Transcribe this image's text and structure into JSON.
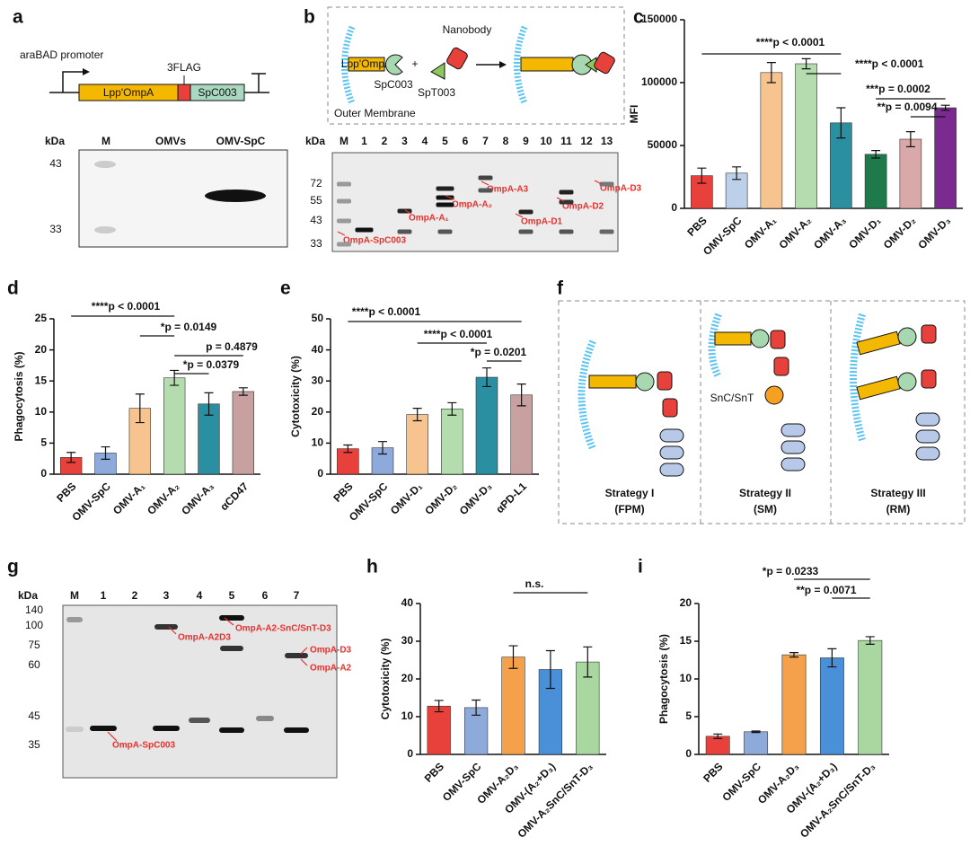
{
  "panel_labels": [
    "a",
    "b",
    "c",
    "d",
    "e",
    "f",
    "g",
    "h",
    "i"
  ],
  "panel_a": {
    "promoter": "araBAD promoter",
    "tag": "3FLAG",
    "genes": [
      "Lpp'OmpA",
      "SpC003"
    ],
    "gel": {
      "unit": "kDa",
      "lanes": [
        "M",
        "OMVs",
        "OMV-SpC"
      ],
      "markers": [
        "43",
        "33"
      ]
    }
  },
  "panel_b": {
    "fusion": "Lpp'OmpA",
    "spc": "SpC003",
    "nanobody": "Nanobody",
    "spt": "SpT003",
    "membrane": "Outer Membrane",
    "plus": "+",
    "gel": {
      "unit": "kDa",
      "lanes": [
        "M",
        "1",
        "2",
        "3",
        "4",
        "5",
        "6",
        "7",
        "8",
        "9",
        "10",
        "11",
        "12",
        "13"
      ],
      "markers": [
        "72",
        "55",
        "43",
        "33"
      ],
      "bands": [
        "OmpA-SpC003",
        "OmpA-A₁",
        "OmpA-A₂",
        "OmpA-A3",
        "OmpA-D1",
        "OmpA-D2",
        "OmpA-D3"
      ]
    }
  },
  "panel_f": {
    "linker": "SnC/SnT",
    "strategies": [
      {
        "name": "Strategy I",
        "abbr": "(FPM)"
      },
      {
        "name": "Strategy II",
        "abbr": "(SM)"
      },
      {
        "name": "Strategy III",
        "abbr": "(RM)"
      }
    ]
  },
  "panel_g": {
    "unit": "kDa",
    "lanes": [
      "M",
      "1",
      "2",
      "3",
      "4",
      "5",
      "6",
      "7"
    ],
    "markers": [
      "140",
      "100",
      "75",
      "60",
      "45",
      "35"
    ],
    "bands": [
      "OmpA-A2D3",
      "OmpA-A2-SnC/SnT-D3",
      "OmpA-D3",
      "OmpA-A2",
      "OmpA-SpC003"
    ]
  },
  "chart_data": [
    {
      "type": "bar",
      "ylabel": "MFI",
      "categories": [
        "PBS",
        "OMV-SpC",
        "OMV-A₁",
        "OMV-A₂",
        "OMV-A₃",
        "OMV-D₁",
        "OMV-D₂",
        "OMV-D₃"
      ],
      "values": [
        26000,
        28000,
        108000,
        115000,
        68000,
        43000,
        55000,
        80000
      ],
      "errors": [
        6000,
        5000,
        8000,
        4000,
        12000,
        3000,
        6000,
        2000
      ],
      "colors": [
        "#e8413c",
        "#bcd0ea",
        "#f7c48f",
        "#b5dcae",
        "#2a8fa0",
        "#1e7a4a",
        "#d9a8a8",
        "#7b2a8f"
      ],
      "ylim": [
        0,
        150000
      ],
      "yticks": [
        0,
        50000,
        100000,
        150000
      ],
      "annotations": [
        "****p < 0.0001",
        "****p < 0.0001",
        "***p = 0.0002",
        "**p = 0.0094"
      ]
    },
    {
      "type": "bar",
      "ylabel": "Phagocytosis (%)",
      "categories": [
        "PBS",
        "OMV-SpC",
        "OMV-A₁",
        "OMV-A₂",
        "OMV-A₃",
        "αCD47"
      ],
      "values": [
        2.7,
        3.4,
        10.6,
        15.5,
        11.3,
        13.3
      ],
      "errors": [
        0.8,
        1.0,
        2.3,
        1.2,
        1.8,
        0.6
      ],
      "colors": [
        "#e8413c",
        "#8eaadb",
        "#f7c48f",
        "#b5dcae",
        "#2a8fa0",
        "#c9a0a0"
      ],
      "ylim": [
        0,
        25
      ],
      "yticks": [
        0,
        5,
        10,
        15,
        20,
        25
      ],
      "annotations": [
        "****p < 0.0001",
        "*p = 0.0149",
        "p = 0.4879",
        "*p = 0.0379"
      ]
    },
    {
      "type": "bar",
      "ylabel": "Cytotoxicity (%)",
      "categories": [
        "PBS",
        "OMV-SpC",
        "OMV-D₁",
        "OMV-D₂",
        "OMV-D₃",
        "αPD-L1"
      ],
      "values": [
        8.2,
        8.5,
        19.2,
        21,
        31.2,
        25.5
      ],
      "errors": [
        1.2,
        2,
        2,
        2,
        3,
        3.5
      ],
      "colors": [
        "#e8413c",
        "#8eaadb",
        "#f7c48f",
        "#b5dcae",
        "#2a8fa0",
        "#c9a0a0"
      ],
      "ylim": [
        0,
        50
      ],
      "yticks": [
        0,
        10,
        20,
        30,
        40,
        50
      ],
      "annotations": [
        "****p < 0.0001",
        "****p < 0.0001",
        "*p = 0.0201"
      ]
    },
    {
      "type": "bar",
      "ylabel": "Cytotoxicity (%)",
      "categories": [
        "PBS",
        "OMV-SpC",
        "OMV-A₂D₃",
        "OMV-(A₂+D₃)",
        "OMV-A₂SnC/SnT-D₃"
      ],
      "values": [
        12.8,
        12.4,
        25.8,
        22.5,
        24.5
      ],
      "errors": [
        1.5,
        2,
        3,
        5,
        4
      ],
      "colors": [
        "#e8413c",
        "#8eaadb",
        "#f5a04a",
        "#4a90d9",
        "#a8d8a0"
      ],
      "ylim": [
        0,
        40
      ],
      "yticks": [
        0,
        10,
        20,
        30,
        40
      ],
      "annotations": [
        "n.s."
      ]
    },
    {
      "type": "bar",
      "ylabel": "Phagocytosis (%)",
      "categories": [
        "PBS",
        "OMV-SpC",
        "OMV-A₂D₃",
        "OMV-(A₂+D₃)",
        "OMV-A₂SnC/SnT-D₃"
      ],
      "values": [
        2.4,
        3.0,
        13.2,
        12.8,
        15.1
      ],
      "errors": [
        0.3,
        0.1,
        0.3,
        1.2,
        0.5
      ],
      "colors": [
        "#e8413c",
        "#8eaadb",
        "#f5a04a",
        "#4a90d9",
        "#a8d8a0"
      ],
      "ylim": [
        0,
        20
      ],
      "yticks": [
        0,
        5,
        10,
        15,
        20
      ],
      "annotations": [
        "*p = 0.0233",
        "**p = 0.0071"
      ]
    }
  ]
}
